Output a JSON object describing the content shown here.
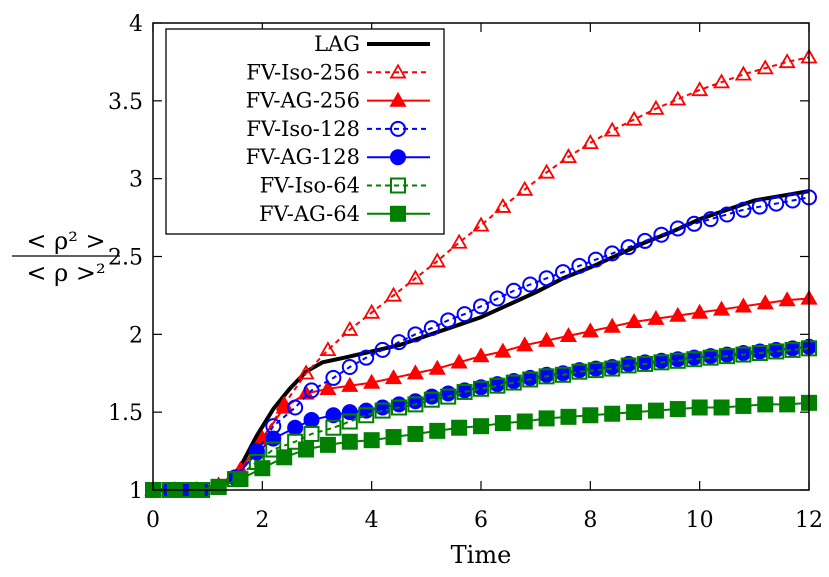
{
  "chart_data": {
    "type": "line",
    "title": "",
    "xlabel": "Time",
    "ylabel_num": "< ρ² >",
    "ylabel_den": "< ρ >²",
    "xlim": [
      0,
      12
    ],
    "ylim": [
      1,
      4
    ],
    "xticks": [
      0,
      2,
      4,
      6,
      8,
      10,
      12
    ],
    "yticks": [
      1,
      1.5,
      2,
      2.5,
      3,
      3.5,
      4
    ],
    "ytick_labels": [
      "1",
      "1.5",
      "2",
      "2.5",
      "3",
      "3.5",
      "4"
    ],
    "grid": false,
    "legend_position": "top-left",
    "series": [
      {
        "name": "LAG",
        "color": "#000000",
        "dash": "solid",
        "marker": "none",
        "width": 4,
        "x": [
          0,
          0.5,
          1.0,
          1.3,
          1.6,
          1.9,
          2.2,
          2.5,
          2.8,
          3.1,
          3.5,
          4,
          4.5,
          5,
          5.5,
          6,
          6.5,
          7,
          7.5,
          8,
          8.5,
          9,
          9.5,
          10,
          10.5,
          11,
          11.5,
          12
        ],
        "y": [
          1.0,
          1.0,
          1.01,
          1.04,
          1.15,
          1.35,
          1.52,
          1.65,
          1.76,
          1.82,
          1.85,
          1.89,
          1.93,
          1.99,
          2.05,
          2.11,
          2.19,
          2.27,
          2.36,
          2.43,
          2.51,
          2.59,
          2.66,
          2.74,
          2.8,
          2.86,
          2.89,
          2.92
        ]
      },
      {
        "name": "FV-Iso-256",
        "color": "#ff0000",
        "dash": "dashed",
        "marker": "open-triangle",
        "width": 2,
        "x": [
          0,
          0.4,
          0.8,
          1.2,
          1.6,
          2.0,
          2.4,
          2.8,
          3.2,
          3.6,
          4.0,
          4.4,
          4.8,
          5.2,
          5.6,
          6.0,
          6.4,
          6.8,
          7.2,
          7.6,
          8.0,
          8.4,
          8.8,
          9.2,
          9.6,
          10.0,
          10.4,
          10.8,
          11.2,
          11.6,
          12.0
        ],
        "y": [
          1.0,
          1.0,
          1.0,
          1.03,
          1.13,
          1.33,
          1.55,
          1.75,
          1.9,
          2.03,
          2.14,
          2.25,
          2.36,
          2.47,
          2.59,
          2.7,
          2.82,
          2.93,
          3.04,
          3.14,
          3.23,
          3.31,
          3.38,
          3.45,
          3.51,
          3.57,
          3.62,
          3.67,
          3.71,
          3.75,
          3.78
        ],
        "marker_every": 1
      },
      {
        "name": "FV-AG-256",
        "color": "#ff0000",
        "dash": "solid",
        "marker": "filled-triangle",
        "width": 2,
        "x": [
          0,
          0.4,
          0.8,
          1.2,
          1.6,
          2.0,
          2.4,
          2.8,
          3.2,
          3.6,
          4.0,
          4.4,
          4.8,
          5.2,
          5.6,
          6.0,
          6.4,
          6.8,
          7.2,
          7.6,
          8.0,
          8.4,
          8.8,
          9.2,
          9.6,
          10.0,
          10.4,
          10.8,
          11.2,
          11.6,
          12.0
        ],
        "y": [
          1.0,
          1.0,
          1.0,
          1.03,
          1.13,
          1.33,
          1.53,
          1.62,
          1.65,
          1.67,
          1.69,
          1.72,
          1.75,
          1.78,
          1.82,
          1.86,
          1.89,
          1.93,
          1.96,
          1.99,
          2.02,
          2.05,
          2.08,
          2.1,
          2.12,
          2.14,
          2.16,
          2.18,
          2.2,
          2.22,
          2.23
        ]
      },
      {
        "name": "FV-Iso-128",
        "color": "#0000ff",
        "dash": "dashed",
        "marker": "open-circle",
        "width": 2,
        "x": [
          0,
          0.3,
          0.6,
          0.9,
          1.2,
          1.5,
          1.9,
          2.2,
          2.6,
          2.9,
          3.3,
          3.6,
          3.9,
          4.2,
          4.5,
          4.8,
          5.1,
          5.4,
          5.7,
          6.0,
          6.3,
          6.6,
          6.9,
          7.2,
          7.5,
          7.8,
          8.1,
          8.4,
          8.7,
          9.0,
          9.3,
          9.6,
          9.9,
          10.2,
          10.5,
          10.8,
          11.1,
          11.4,
          11.7,
          12.0
        ],
        "y": [
          1.0,
          1.0,
          1.0,
          1.0,
          1.02,
          1.08,
          1.25,
          1.41,
          1.53,
          1.64,
          1.72,
          1.79,
          1.85,
          1.9,
          1.95,
          2.0,
          2.04,
          2.09,
          2.13,
          2.18,
          2.23,
          2.28,
          2.32,
          2.36,
          2.4,
          2.44,
          2.48,
          2.52,
          2.56,
          2.6,
          2.64,
          2.68,
          2.71,
          2.74,
          2.77,
          2.8,
          2.82,
          2.84,
          2.86,
          2.88
        ]
      },
      {
        "name": "FV-AG-128",
        "color": "#0000ff",
        "dash": "solid",
        "marker": "filled-circle",
        "width": 2,
        "x": [
          0,
          0.3,
          0.6,
          0.9,
          1.2,
          1.5,
          1.9,
          2.2,
          2.6,
          2.9,
          3.3,
          3.6,
          3.9,
          4.2,
          4.5,
          4.8,
          5.1,
          5.4,
          5.7,
          6.0,
          6.3,
          6.6,
          6.9,
          7.2,
          7.5,
          7.8,
          8.1,
          8.4,
          8.7,
          9.0,
          9.3,
          9.6,
          9.9,
          10.2,
          10.5,
          10.8,
          11.1,
          11.4,
          11.7,
          12.0
        ],
        "y": [
          1.0,
          1.0,
          1.0,
          1.0,
          1.02,
          1.08,
          1.24,
          1.33,
          1.4,
          1.45,
          1.48,
          1.5,
          1.51,
          1.53,
          1.55,
          1.57,
          1.6,
          1.62,
          1.64,
          1.66,
          1.68,
          1.7,
          1.72,
          1.74,
          1.75,
          1.77,
          1.78,
          1.79,
          1.81,
          1.82,
          1.83,
          1.84,
          1.85,
          1.86,
          1.87,
          1.88,
          1.89,
          1.9,
          1.91,
          1.92
        ]
      },
      {
        "name": "FV-Iso-64",
        "color": "#008000",
        "dash": "dashed",
        "marker": "open-square",
        "width": 2,
        "x": [
          0,
          0.3,
          0.6,
          0.9,
          1.2,
          1.5,
          1.9,
          2.2,
          2.6,
          2.9,
          3.3,
          3.6,
          3.9,
          4.2,
          4.5,
          4.8,
          5.1,
          5.4,
          5.7,
          6.0,
          6.3,
          6.6,
          6.9,
          7.2,
          7.5,
          7.8,
          8.1,
          8.4,
          8.7,
          9.0,
          9.3,
          9.6,
          9.9,
          10.2,
          10.5,
          10.8,
          11.1,
          11.4,
          11.7,
          12.0
        ],
        "y": [
          1.0,
          1.0,
          1.0,
          1.0,
          1.02,
          1.07,
          1.18,
          1.26,
          1.31,
          1.36,
          1.4,
          1.44,
          1.48,
          1.51,
          1.53,
          1.55,
          1.58,
          1.6,
          1.63,
          1.65,
          1.67,
          1.69,
          1.71,
          1.73,
          1.74,
          1.76,
          1.77,
          1.78,
          1.8,
          1.81,
          1.82,
          1.83,
          1.84,
          1.85,
          1.86,
          1.87,
          1.88,
          1.89,
          1.9,
          1.91
        ]
      },
      {
        "name": "FV-AG-64",
        "color": "#008000",
        "dash": "solid",
        "marker": "filled-square",
        "width": 2,
        "x": [
          0,
          0.4,
          0.8,
          1.2,
          1.6,
          2.0,
          2.4,
          2.8,
          3.2,
          3.6,
          4.0,
          4.4,
          4.8,
          5.2,
          5.6,
          6.0,
          6.4,
          6.8,
          7.2,
          7.6,
          8.0,
          8.4,
          8.8,
          9.2,
          9.6,
          10.0,
          10.4,
          10.8,
          11.2,
          11.6,
          12.0
        ],
        "y": [
          1.0,
          1.0,
          1.0,
          1.02,
          1.07,
          1.14,
          1.21,
          1.26,
          1.29,
          1.31,
          1.32,
          1.34,
          1.36,
          1.38,
          1.4,
          1.41,
          1.43,
          1.44,
          1.46,
          1.47,
          1.48,
          1.49,
          1.5,
          1.51,
          1.52,
          1.53,
          1.53,
          1.54,
          1.55,
          1.55,
          1.56
        ]
      }
    ]
  }
}
